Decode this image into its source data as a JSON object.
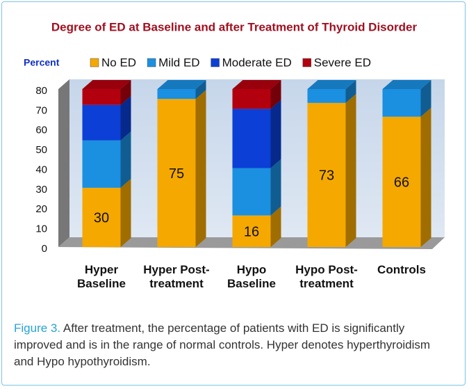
{
  "chart_data": {
    "type": "stacked_bar_3d",
    "title": "Degree of ED at Baseline and after Treatment of Thyroid Disorder",
    "y_label": "Percent",
    "categories": [
      "Hyper Baseline",
      "Hyper Post-treatment",
      "Hypo Baseline",
      "Hypo Post-treatment",
      "Controls"
    ],
    "series": [
      {
        "name": "No ED",
        "color": "#f5a800",
        "values": [
          30,
          75,
          16,
          73,
          66
        ]
      },
      {
        "name": "Mild ED",
        "color": "#1b8fe0",
        "values": [
          24,
          5,
          24,
          7,
          14
        ]
      },
      {
        "name": "Moderate ED",
        "color": "#0b3fd6",
        "values": [
          18,
          0,
          30,
          0,
          0
        ]
      },
      {
        "name": "Severe ED",
        "color": "#b3000f",
        "values": [
          8,
          0,
          10,
          0,
          0
        ]
      }
    ],
    "data_label_series": 0,
    "ylim": [
      0,
      80
    ],
    "yticks": [
      0,
      10,
      20,
      30,
      40,
      50,
      60,
      70,
      80
    ]
  },
  "caption": {
    "label": "Figure 3.",
    "text": "After treatment, the percentage of patients with ED is significantly improved and is in the range of normal controls. Hyper denotes hyperthyroidism and Hypo hypothyroidism."
  }
}
